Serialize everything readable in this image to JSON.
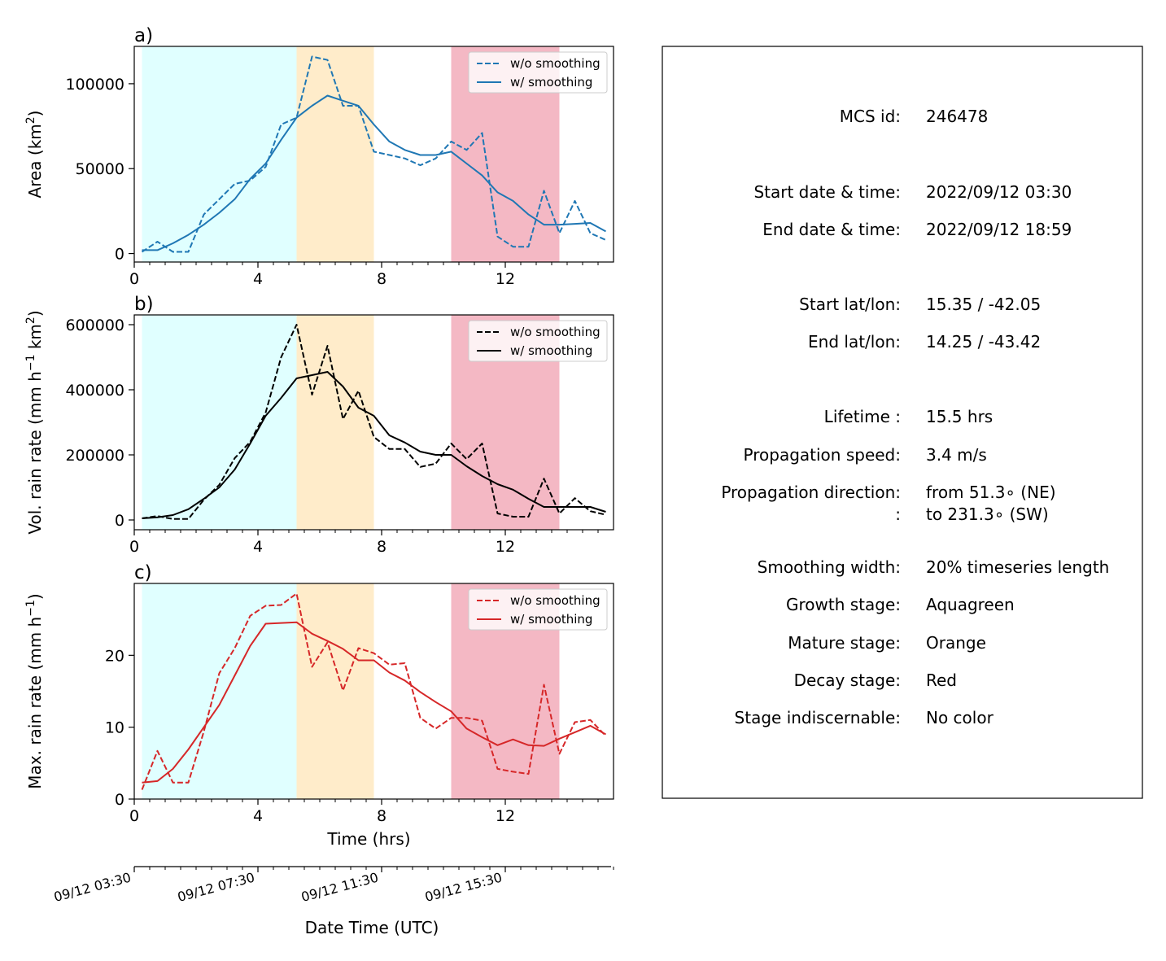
{
  "chart_data": [
    {
      "type": "line",
      "panel_label": "a)",
      "ylabel": "Area  (km$^2$)",
      "ylabel_display": [
        "Area  (km",
        "2",
        ")"
      ],
      "xlim": [
        0,
        15.5
      ],
      "ylim": [
        -5000,
        122000
      ],
      "yticks": [
        0,
        50000,
        100000
      ],
      "xticks": [
        0,
        4,
        8,
        12
      ],
      "legend": "top-right",
      "series": [
        {
          "name": "w/o smoothing",
          "color": "#1f77b4",
          "style": "dashed",
          "x": [
            0.25,
            0.75,
            1.25,
            1.75,
            2.25,
            2.75,
            3.25,
            3.75,
            4.25,
            4.75,
            5.25,
            5.75,
            6.25,
            6.75,
            7.25,
            7.75,
            8.25,
            8.75,
            9.25,
            9.75,
            10.25,
            10.75,
            11.25,
            11.75,
            12.25,
            12.75,
            13.25,
            13.75,
            14.25,
            14.75,
            15.25
          ],
          "values": [
            1000,
            7000,
            1000,
            1000,
            23000,
            32000,
            41000,
            43000,
            51000,
            76000,
            80000,
            116000,
            114000,
            87000,
            87000,
            60000,
            58000,
            56000,
            52000,
            56000,
            66000,
            61000,
            71000,
            10000,
            4000,
            4000,
            37000,
            12000,
            31000,
            12000,
            8000
          ]
        },
        {
          "name": "w/ smoothing",
          "color": "#1f77b4",
          "style": "solid",
          "x": [
            0.25,
            0.75,
            1.25,
            1.75,
            2.25,
            2.75,
            3.25,
            3.75,
            4.25,
            4.75,
            5.25,
            5.75,
            6.25,
            6.75,
            7.25,
            7.75,
            8.25,
            8.75,
            9.25,
            9.75,
            10.25,
            10.75,
            11.25,
            11.75,
            12.25,
            12.75,
            13.25,
            13.75,
            14.25,
            14.75,
            15.25
          ],
          "values": [
            2000,
            2000,
            6000,
            11000,
            17000,
            24000,
            32000,
            44000,
            53000,
            67000,
            80000,
            87000,
            93000,
            90000,
            87000,
            76000,
            66000,
            61000,
            58000,
            58000,
            60000,
            53000,
            46000,
            36000,
            31000,
            23000,
            17000,
            17000,
            17500,
            18000,
            13000
          ]
        }
      ]
    },
    {
      "type": "line",
      "panel_label": "b)",
      "ylabel": "Vol. rain rate (mm h$^{-1}$ km$^2$)",
      "ylabel_display": [
        "Vol. rain rate (mm h",
        "−1",
        " km",
        "2",
        ")"
      ],
      "xlim": [
        0,
        15.5
      ],
      "ylim": [
        -30000,
        630000
      ],
      "yticks": [
        0,
        200000,
        400000,
        600000
      ],
      "xticks": [
        0,
        4,
        8,
        12
      ],
      "legend": "top-right",
      "series": [
        {
          "name": "w/o smoothing",
          "color": "#000000",
          "style": "dashed",
          "x": [
            0.25,
            0.75,
            1.25,
            1.75,
            2.25,
            2.75,
            3.25,
            3.75,
            4.25,
            4.75,
            5.25,
            5.75,
            6.25,
            6.75,
            7.25,
            7.75,
            8.25,
            8.75,
            9.25,
            9.75,
            10.25,
            10.75,
            11.25,
            11.75,
            12.25,
            12.75,
            13.25,
            13.75,
            14.25,
            14.75,
            15.25
          ],
          "values": [
            5000,
            12000,
            3000,
            3000,
            62000,
            108000,
            190000,
            240000,
            330000,
            500000,
            600000,
            385000,
            535000,
            310000,
            397000,
            255000,
            218000,
            218000,
            163000,
            173000,
            235000,
            187000,
            235000,
            20000,
            10000,
            10000,
            127000,
            20000,
            67000,
            27000,
            16000
          ]
        },
        {
          "name": "w/ smoothing",
          "color": "#000000",
          "style": "solid",
          "x": [
            0.25,
            0.75,
            1.25,
            1.75,
            2.25,
            2.75,
            3.25,
            3.75,
            4.25,
            4.75,
            5.25,
            5.75,
            6.25,
            6.75,
            7.25,
            7.75,
            8.25,
            8.75,
            9.25,
            9.75,
            10.25,
            10.75,
            11.25,
            11.75,
            12.25,
            12.75,
            13.25,
            13.75,
            14.25,
            14.75,
            15.25
          ],
          "values": [
            5000,
            8000,
            15000,
            33000,
            65000,
            100000,
            155000,
            235000,
            320000,
            375000,
            435000,
            445000,
            455000,
            410000,
            345000,
            320000,
            260000,
            238000,
            210000,
            200000,
            200000,
            165000,
            135000,
            110000,
            93000,
            65000,
            40000,
            40000,
            40000,
            40000,
            25000
          ]
        }
      ]
    },
    {
      "type": "line",
      "panel_label": "c)",
      "ylabel": "Max. rain rate  (mm h$^{-1}$)",
      "ylabel_display": [
        "Max. rain rate  (mm h",
        "−1",
        ")"
      ],
      "xlabel": "Time (hrs)",
      "xlim": [
        0,
        15.5
      ],
      "ylim": [
        0,
        30
      ],
      "yticks": [
        0,
        10,
        20
      ],
      "xticks": [
        0,
        4,
        8,
        12
      ],
      "legend": "top-right",
      "series": [
        {
          "name": "w/o smoothing",
          "color": "#d62728",
          "style": "dashed",
          "x": [
            0.25,
            0.75,
            1.25,
            1.75,
            2.25,
            2.75,
            3.25,
            3.75,
            4.25,
            4.75,
            5.25,
            5.75,
            6.25,
            6.75,
            7.25,
            7.75,
            8.25,
            8.75,
            9.25,
            9.75,
            10.25,
            10.75,
            11.25,
            11.75,
            12.25,
            12.75,
            13.25,
            13.75,
            14.25,
            14.75,
            15.25
          ],
          "values": [
            1.3,
            6.7,
            2.3,
            2.3,
            9.4,
            17.5,
            21.0,
            25.5,
            26.9,
            27.0,
            28.6,
            18.4,
            21.8,
            15.1,
            21.0,
            20.3,
            18.7,
            18.9,
            11.3,
            9.8,
            11.3,
            11.3,
            10.9,
            4.2,
            3.8,
            3.5,
            15.9,
            6.3,
            10.7,
            11.0,
            8.8
          ]
        },
        {
          "name": "w/ smoothing",
          "color": "#d62728",
          "style": "solid",
          "x": [
            0.25,
            0.75,
            1.25,
            1.75,
            2.25,
            2.75,
            3.25,
            3.75,
            4.25,
            4.75,
            5.25,
            5.75,
            6.25,
            6.75,
            7.25,
            7.75,
            8.25,
            8.75,
            9.25,
            9.75,
            10.25,
            10.75,
            11.25,
            11.75,
            12.25,
            12.75,
            13.25,
            13.75,
            14.25,
            14.75,
            15.25
          ],
          "values": [
            2.3,
            2.5,
            4.2,
            6.9,
            10.0,
            13.1,
            17.2,
            21.3,
            24.4,
            24.5,
            24.6,
            23.0,
            22.0,
            20.9,
            19.3,
            19.3,
            17.6,
            16.5,
            14.9,
            13.5,
            12.2,
            9.8,
            8.6,
            7.5,
            8.3,
            7.5,
            7.4,
            8.4,
            9.3,
            10.2,
            9.0
          ]
        }
      ]
    }
  ],
  "stages": [
    {
      "name": "Growth stage",
      "color": "#e0ffff",
      "x_start": 0.25,
      "x_end": 5.25
    },
    {
      "name": "Mature stage",
      "color": "#ffecca",
      "x_start": 5.25,
      "x_end": 7.75
    },
    {
      "name": "Decay stage",
      "color": "#f4b8c4",
      "x_start": 10.25,
      "x_end": 13.75
    }
  ],
  "date_axis": {
    "xlabel": "Date Time (UTC)",
    "ticks": [
      {
        "label": "09/12 03:30",
        "hours": 0
      },
      {
        "label": "09/12 07:30",
        "hours": 4
      },
      {
        "label": "09/12 11:30",
        "hours": 8
      },
      {
        "label": "09/12 15:30",
        "hours": 12
      }
    ],
    "minor_tick_hours": 0.5
  },
  "info_panel": {
    "rows": [
      {
        "label": "MCS id:",
        "value": "246478"
      },
      {
        "label": "Start date & time:",
        "value": "2022/09/12 03:30"
      },
      {
        "label": "End date & time:",
        "value": "2022/09/12 18:59"
      },
      {
        "label": "Start lat/lon:",
        "value": "15.35 / -42.05"
      },
      {
        "label": "End lat/lon:",
        "value": "14.25 / -43.42"
      },
      {
        "label": "Lifetime :",
        "value": "15.5 hrs"
      },
      {
        "label": "Propagation speed:",
        "value": "3.4 m/s"
      },
      {
        "label": "Propagation direction:",
        "value": "from  51.3∘ (NE)"
      },
      {
        "label": ":",
        "value": "to   231.3∘ (SW)"
      },
      {
        "label": "Smoothing width:",
        "value": "20% timeseries length"
      },
      {
        "label": "Growth stage:",
        "value": "Aquagreen"
      },
      {
        "label": "Mature stage:",
        "value": "Orange"
      },
      {
        "label": "Decay stage:",
        "value": "Red"
      },
      {
        "label": "Stage indiscernable:",
        "value": "No color"
      }
    ]
  }
}
